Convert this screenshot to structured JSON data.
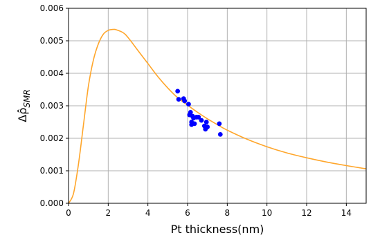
{
  "chart_data": {
    "type": "scatter",
    "xlabel": "Pt thickness(nm)",
    "ylabel": {
      "main": "Δ",
      "accent": "ρ̂",
      "sub": "SMR"
    },
    "xlim": [
      0,
      15
    ],
    "ylim": [
      0,
      0.006
    ],
    "x_ticks": [
      0,
      2,
      4,
      6,
      8,
      10,
      12,
      14
    ],
    "x_tick_labels": [
      "0",
      "2",
      "4",
      "6",
      "8",
      "10",
      "12",
      "14"
    ],
    "y_ticks": [
      0,
      0.001,
      0.002,
      0.003,
      0.004,
      0.005,
      0.006
    ],
    "y_tick_labels": [
      "0.000",
      "0.001",
      "0.002",
      "0.003",
      "0.004",
      "0.005",
      "0.006"
    ],
    "grid": true,
    "series": [
      {
        "kind": "line",
        "color": "#FFA62B",
        "x": [
          0,
          0.25,
          0.5,
          0.75,
          1.0,
          1.25,
          1.5,
          1.75,
          2.0,
          2.25,
          2.4,
          2.75,
          3.0,
          3.5,
          4.0,
          4.5,
          5.0,
          5.5,
          6.0,
          6.5,
          7.0,
          7.5,
          8.0,
          9.0,
          10.0,
          11.0,
          12.0,
          13.0,
          14.0,
          15.0
        ],
        "y": [
          0.0,
          0.0003,
          0.0012,
          0.0024,
          0.0036,
          0.0044,
          0.0049,
          0.0052,
          0.00532,
          0.00535,
          0.00534,
          0.00525,
          0.0051,
          0.0047,
          0.0043,
          0.0039,
          0.00355,
          0.00325,
          0.00302,
          0.0028,
          0.0026,
          0.00242,
          0.00225,
          0.00197,
          0.00174,
          0.00155,
          0.0014,
          0.00127,
          0.00116,
          0.00106
        ]
      },
      {
        "kind": "scatter",
        "color": "#0000FF",
        "x": [
          5.5,
          5.55,
          5.8,
          5.85,
          6.05,
          6.1,
          6.15,
          6.2,
          6.2,
          6.25,
          6.3,
          6.35,
          6.45,
          6.55,
          6.7,
          6.85,
          6.9,
          6.95,
          7.0,
          7.6,
          7.65
        ],
        "y": [
          0.00345,
          0.0032,
          0.00322,
          0.00315,
          0.00305,
          0.00272,
          0.0028,
          0.0025,
          0.00242,
          0.00268,
          0.00262,
          0.00245,
          0.00265,
          0.00265,
          0.00255,
          0.00238,
          0.00228,
          0.0025,
          0.00235,
          0.00245,
          0.00212
        ]
      }
    ]
  }
}
